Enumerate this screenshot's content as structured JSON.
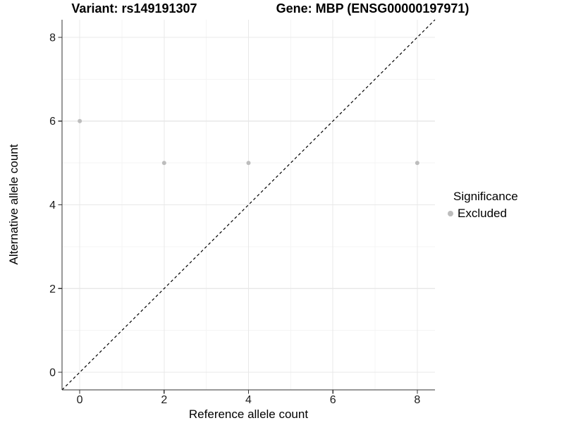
{
  "chart_data": {
    "type": "scatter",
    "title_left": "Variant: rs149191307",
    "title_right": "Gene: MBP (ENSG00000197971)",
    "xlabel": "Reference allele count",
    "ylabel": "Alternative allele count",
    "xlim": [
      -0.42,
      8.42
    ],
    "ylim": [
      -0.42,
      8.42
    ],
    "x_ticks": [
      0,
      2,
      4,
      6,
      8
    ],
    "y_ticks": [
      0,
      2,
      4,
      6,
      8
    ],
    "x_minor_ticks": [
      1,
      3,
      5,
      7
    ],
    "y_minor_ticks": [
      1,
      3,
      5,
      7
    ],
    "grid": "on",
    "legend_position": "right",
    "series": [
      {
        "name": "Excluded",
        "color": "#bdbdbd",
        "point_radius": 3,
        "points": [
          [
            0,
            6
          ],
          [
            2,
            5
          ],
          [
            4,
            5
          ],
          [
            8,
            5
          ]
        ]
      }
    ],
    "identity_line": {
      "equation": "y = x",
      "style": "dashed",
      "color": "#000000"
    }
  },
  "legend": {
    "title": "Significance",
    "items": [
      {
        "label": "Excluded",
        "color": "#bdbdbd"
      }
    ]
  },
  "colors": {
    "background": "#ffffff",
    "grid_major": "#e8e8e8",
    "grid_minor": "#f4f4f4",
    "axis_line": "#333333",
    "tick_mark": "#333333",
    "tick_label": "#1a1a1a"
  }
}
